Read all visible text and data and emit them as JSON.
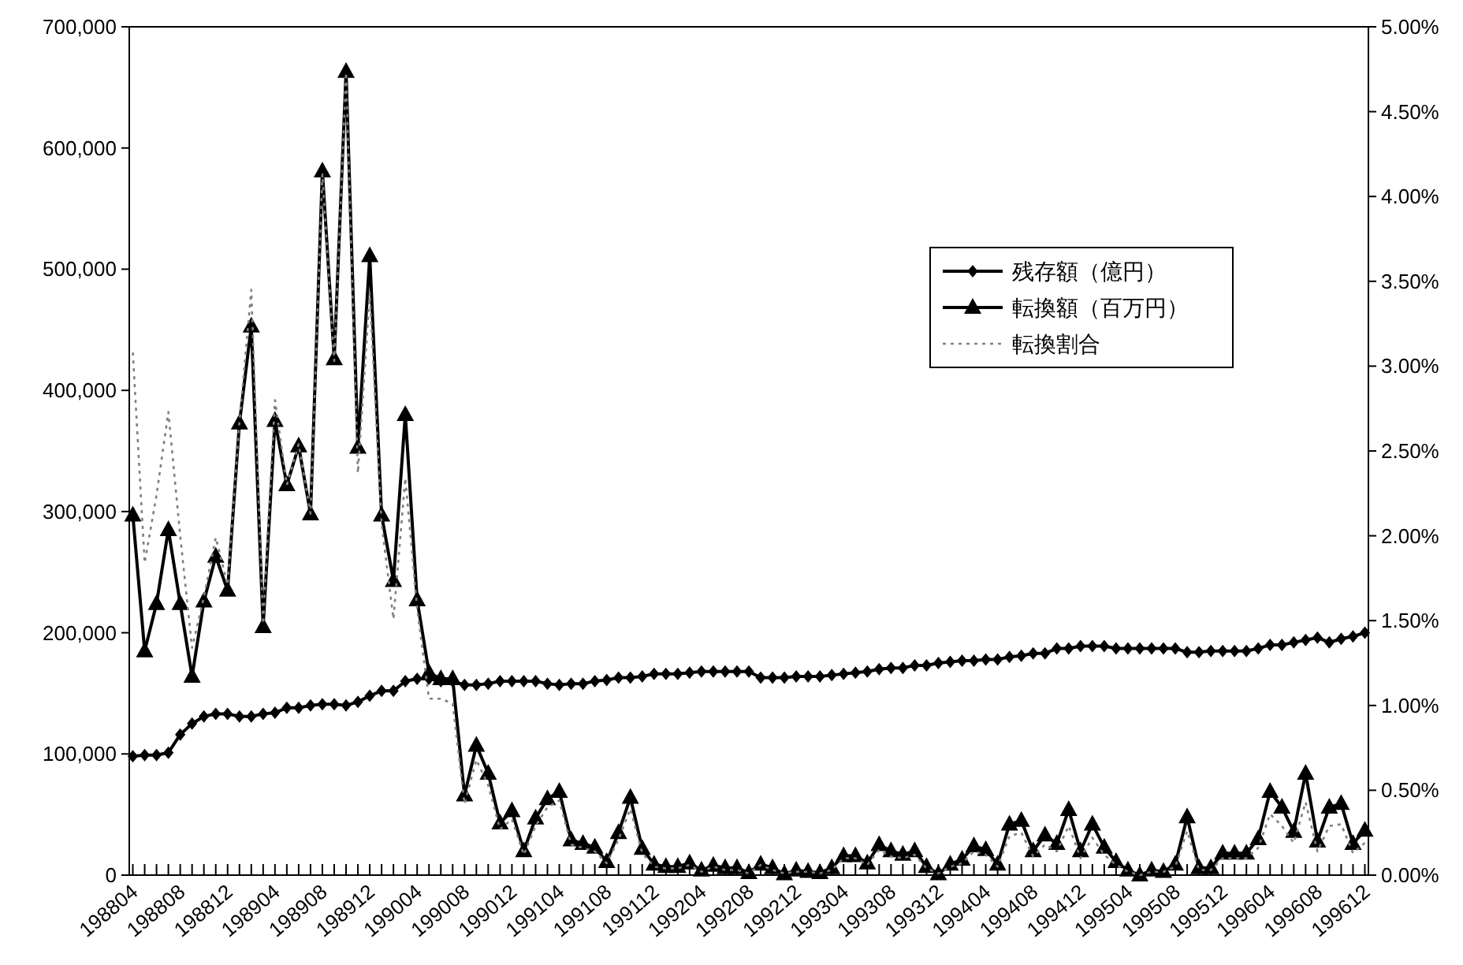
{
  "chart_data": {
    "type": "line",
    "categories": [
      "198804",
      null,
      null,
      null,
      "198808",
      null,
      null,
      null,
      "198812",
      null,
      null,
      null,
      "198904",
      null,
      null,
      null,
      "198908",
      null,
      null,
      null,
      "198912",
      null,
      null,
      null,
      "199004",
      null,
      null,
      null,
      "199008",
      null,
      null,
      null,
      "199012",
      null,
      null,
      null,
      "199104",
      null,
      null,
      null,
      "199108",
      null,
      null,
      null,
      "199112",
      null,
      null,
      null,
      "199204",
      null,
      null,
      null,
      "199208",
      null,
      null,
      null,
      "199212",
      null,
      null,
      null,
      "199304",
      null,
      null,
      null,
      "199308",
      null,
      null,
      null,
      "199312",
      null,
      null,
      null,
      "199404",
      null,
      null,
      null,
      "199408",
      null,
      null,
      null,
      "199412",
      null,
      null,
      null,
      "199504",
      null,
      null,
      null,
      "199508",
      null,
      null,
      null,
      "199512",
      null,
      null,
      null,
      "199604",
      null,
      null,
      null,
      "199608",
      null,
      null,
      null,
      "199612"
    ],
    "ylim": [
      0,
      700000
    ],
    "yticks": [
      0,
      {
        "value": 100000,
        "label": "100,000"
      },
      {
        "value": 200000,
        "label": "200,000"
      },
      {
        "value": 300000,
        "label": "300,000"
      },
      {
        "value": 400000,
        "label": "400,000"
      },
      {
        "value": 500000,
        "label": "500,000"
      },
      {
        "value": 600000,
        "label": "600,000"
      },
      {
        "value": 700000,
        "label": "700,000"
      }
    ],
    "y2lim": [
      0,
      5
    ],
    "y2ticks": [
      {
        "value": 0,
        "label": "0.00%"
      },
      {
        "value": 0.5,
        "label": "0.50%"
      },
      {
        "value": 1,
        "label": "1.00%"
      },
      {
        "value": 1.5,
        "label": "1.50%"
      },
      {
        "value": 2,
        "label": "2.00%"
      },
      {
        "value": 2.5,
        "label": "2.50%"
      },
      {
        "value": 3,
        "label": "3.00%"
      },
      {
        "value": 3.5,
        "label": "3.50%"
      },
      {
        "value": 4,
        "label": "4.00%"
      },
      {
        "value": 4.5,
        "label": "4.50%"
      },
      {
        "value": 5,
        "label": "5.00%"
      }
    ],
    "grid": false,
    "legend": "right",
    "series": [
      {
        "name": "残存額（億円）",
        "color": "#000000",
        "marker": "diamond",
        "line_style": "solid",
        "values": [
          98000,
          99000,
          99000,
          101000,
          116000,
          125000,
          131000,
          133000,
          133000,
          131000,
          131000,
          133000,
          134000,
          138000,
          138000,
          140000,
          141000,
          141000,
          140000,
          143000,
          148000,
          152000,
          152000,
          160000,
          162000,
          162000,
          160000,
          160000,
          157000,
          157000,
          158000,
          160000,
          160000,
          160000,
          160000,
          158000,
          157000,
          158000,
          158000,
          160000,
          161000,
          163000,
          163000,
          164000,
          166000,
          166000,
          166000,
          167000,
          168000,
          168000,
          168000,
          168000,
          168000,
          163000,
          163000,
          163000,
          164000,
          164000,
          164000,
          165000,
          166000,
          167000,
          168000,
          170000,
          171000,
          171000,
          173000,
          173000,
          175000,
          176000,
          177000,
          177000,
          178000,
          178000,
          180000,
          181000,
          183000,
          183000,
          187000,
          187000,
          189000,
          189000,
          189000,
          187000,
          187000,
          187000,
          187000,
          187000,
          187000,
          184000,
          184000,
          185000,
          185000,
          185000,
          185000,
          187000,
          190000,
          190000,
          192000,
          194000,
          196000,
          192000,
          195000,
          197000,
          200000
        ]
      },
      {
        "name": "転換額（百万円）",
        "color": "#000000",
        "marker": "triangle",
        "line_style": "solid",
        "values": [
          297000,
          185000,
          224000,
          285000,
          224000,
          164000,
          226000,
          263000,
          235000,
          373000,
          453000,
          205000,
          375000,
          322000,
          354000,
          298000,
          581000,
          426000,
          663000,
          353000,
          511000,
          297000,
          243000,
          380000,
          227000,
          167000,
          162000,
          162000,
          66000,
          107000,
          84000,
          43000,
          53000,
          20000,
          47000,
          63000,
          69000,
          29000,
          26000,
          23000,
          11000,
          35000,
          64000,
          22000,
          9000,
          7000,
          7000,
          10000,
          4000,
          8000,
          6000,
          6000,
          2000,
          9000,
          6000,
          1000,
          4000,
          3000,
          2000,
          6000,
          16000,
          16000,
          10000,
          25000,
          20000,
          17000,
          20000,
          7000,
          1000,
          9000,
          13000,
          24000,
          21000,
          9000,
          42000,
          45000,
          20000,
          33000,
          26000,
          54000,
          20000,
          42000,
          23000,
          11000,
          4000,
          0,
          4000,
          3000,
          9000,
          48000,
          6000,
          6000,
          18000,
          18000,
          18000,
          30000,
          69000,
          56000,
          36000,
          84000,
          28000,
          56000,
          59000,
          26000,
          37000
        ]
      },
      {
        "name": "転換割合",
        "color": "#808080",
        "marker": "none",
        "line_style": "dotted",
        "axis": "y2",
        "values": [
          3.08,
          1.84,
          2.24,
          2.73,
          2.0,
          1.34,
          1.64,
          1.99,
          1.71,
          2.67,
          3.45,
          1.48,
          2.8,
          2.3,
          2.54,
          2.13,
          4.13,
          3.03,
          4.73,
          2.37,
          3.43,
          2.07,
          1.51,
          2.34,
          1.57,
          1.04,
          1.04,
          1.01,
          0.42,
          0.68,
          0.53,
          0.27,
          0.33,
          0.12,
          0.29,
          0.4,
          0.44,
          0.18,
          0.16,
          0.14,
          0.07,
          0.21,
          0.39,
          0.13,
          0.05,
          0.04,
          0.04,
          0.06,
          0.02,
          0.05,
          0.03,
          0.03,
          0.01,
          0.06,
          0.03,
          0.01,
          0.02,
          0.02,
          0.01,
          0.03,
          0.1,
          0.1,
          0.06,
          0.15,
          0.11,
          0.1,
          0.12,
          0.04,
          0.01,
          0.05,
          0.07,
          0.14,
          0.12,
          0.05,
          0.23,
          0.25,
          0.11,
          0.18,
          0.14,
          0.29,
          0.1,
          0.22,
          0.12,
          0.06,
          0.02,
          0.0,
          0.02,
          0.02,
          0.05,
          0.26,
          0.03,
          0.03,
          0.1,
          0.1,
          0.1,
          0.16,
          0.36,
          0.29,
          0.19,
          0.43,
          0.14,
          0.29,
          0.3,
          0.13,
          0.19
        ]
      }
    ]
  }
}
